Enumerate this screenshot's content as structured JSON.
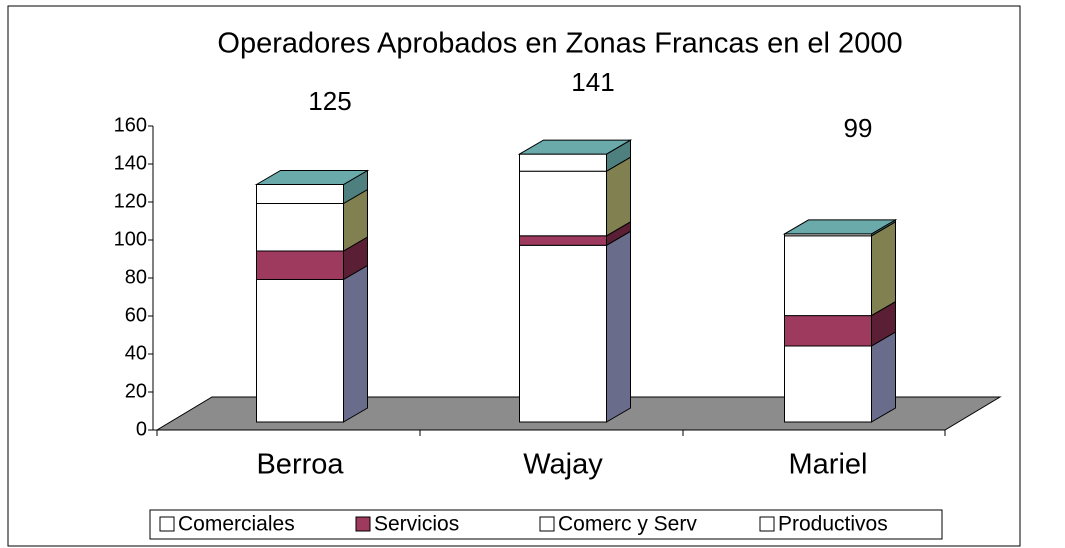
{
  "chart_data": {
    "type": "bar3d_stacked",
    "title": "Operadores Aprobados en Zonas Francas en el 2000",
    "categories": [
      "Berroa",
      "Wajay",
      "Mariel"
    ],
    "totals": [
      125,
      141,
      99
    ],
    "series": [
      {
        "name": "Comerciales",
        "color": "#ffffff",
        "side_color": "#6a6c8c",
        "values": [
          75,
          93,
          40
        ]
      },
      {
        "name": "Servicios",
        "color": "#9e3a5e",
        "side_color": "#5a1f34",
        "values": [
          15,
          5,
          16
        ]
      },
      {
        "name": "Comerc y Serv",
        "color": "#ffffff",
        "side_color": "#808050",
        "values": [
          25,
          34,
          42
        ]
      },
      {
        "name": "Productivos",
        "color": "#ffffff",
        "side_color": "#4e8080",
        "top_color": "#6aaaaa",
        "values": [
          10,
          9,
          1
        ]
      }
    ],
    "ylim": [
      0,
      160
    ],
    "yticks": [
      0,
      20,
      40,
      60,
      80,
      100,
      120,
      140,
      160
    ],
    "legend": "bottom"
  }
}
